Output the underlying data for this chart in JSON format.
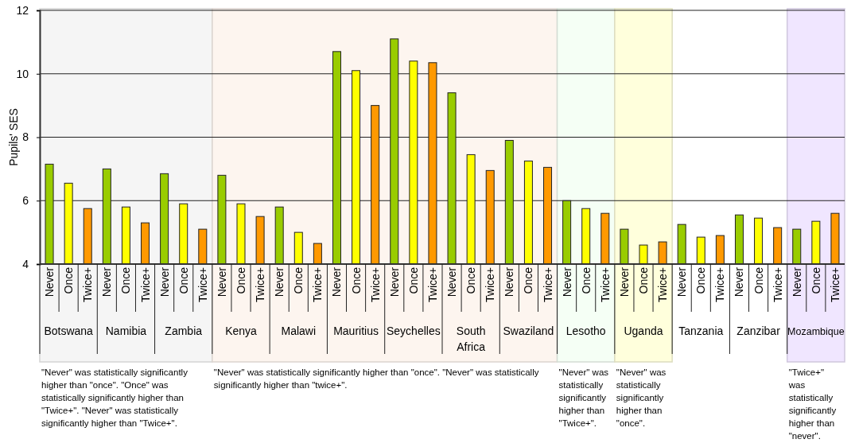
{
  "chart_data": {
    "type": "bar",
    "ylabel": "Pupils' SES",
    "categories": [
      "Botswana",
      "Namibia",
      "Zambia",
      "Kenya",
      "Malawi",
      "Mauritius",
      "Seychelles",
      "South Africa",
      "Swaziland",
      "Lesotho",
      "Uganda",
      "Tanzania",
      "Zanzibar",
      "Mozambique"
    ],
    "series": [
      {
        "name": "Never",
        "color": "#99cc00",
        "values": [
          7.15,
          7.0,
          6.85,
          6.8,
          5.8,
          10.7,
          11.1,
          9.4,
          7.9,
          6.0,
          5.1,
          5.25,
          5.55,
          5.1
        ]
      },
      {
        "name": "Once",
        "color": "#ffff00",
        "values": [
          6.55,
          5.8,
          5.9,
          5.9,
          5.0,
          10.1,
          10.4,
          7.45,
          7.25,
          5.75,
          4.6,
          4.85,
          5.45,
          5.35
        ]
      },
      {
        "name": "Twice+",
        "color": "#ff9900",
        "values": [
          5.75,
          5.3,
          5.1,
          5.5,
          4.65,
          9.0,
          10.35,
          6.95,
          7.05,
          5.6,
          4.7,
          4.9,
          5.15,
          5.6
        ]
      }
    ],
    "ylim": [
      4,
      12
    ],
    "yticks": [
      4,
      6,
      8,
      10,
      12
    ],
    "grid": "y",
    "bands": [
      {
        "axis": "x",
        "from": "Botswana",
        "to": "Zambia",
        "color": "#f5f5f5",
        "label": "\"Never\" was statistically significantly higher than \"once\". \"Once\" was statistically significantly higher than \"Twice+\". \"Never\" was statistically significantly higher than \"Twice+\"."
      },
      {
        "axis": "x",
        "from": "Kenya",
        "to": "Swaziland",
        "color": "#fdf5ef",
        "label": "\"Never\" was statistically significantly higher than \"once\". \"Never\" was statistically significantly higher than \"twice+\"."
      },
      {
        "axis": "x",
        "from": "Lesotho",
        "to": "Lesotho",
        "color": "#f5fff5",
        "label": "\"Never\" was statistically significantly higher than \"Twice+\"."
      },
      {
        "axis": "x",
        "from": "Uganda",
        "to": "Uganda",
        "color": "#ffffdc",
        "label": "\"Never\" was statistically significantly higher than \"once\"."
      },
      {
        "axis": "x",
        "from": "Mozambique",
        "to": "Mozambique",
        "color": "#f0e6ff",
        "label": "\"Twice+\" was statistically significantly higher than \"never\"."
      }
    ]
  }
}
